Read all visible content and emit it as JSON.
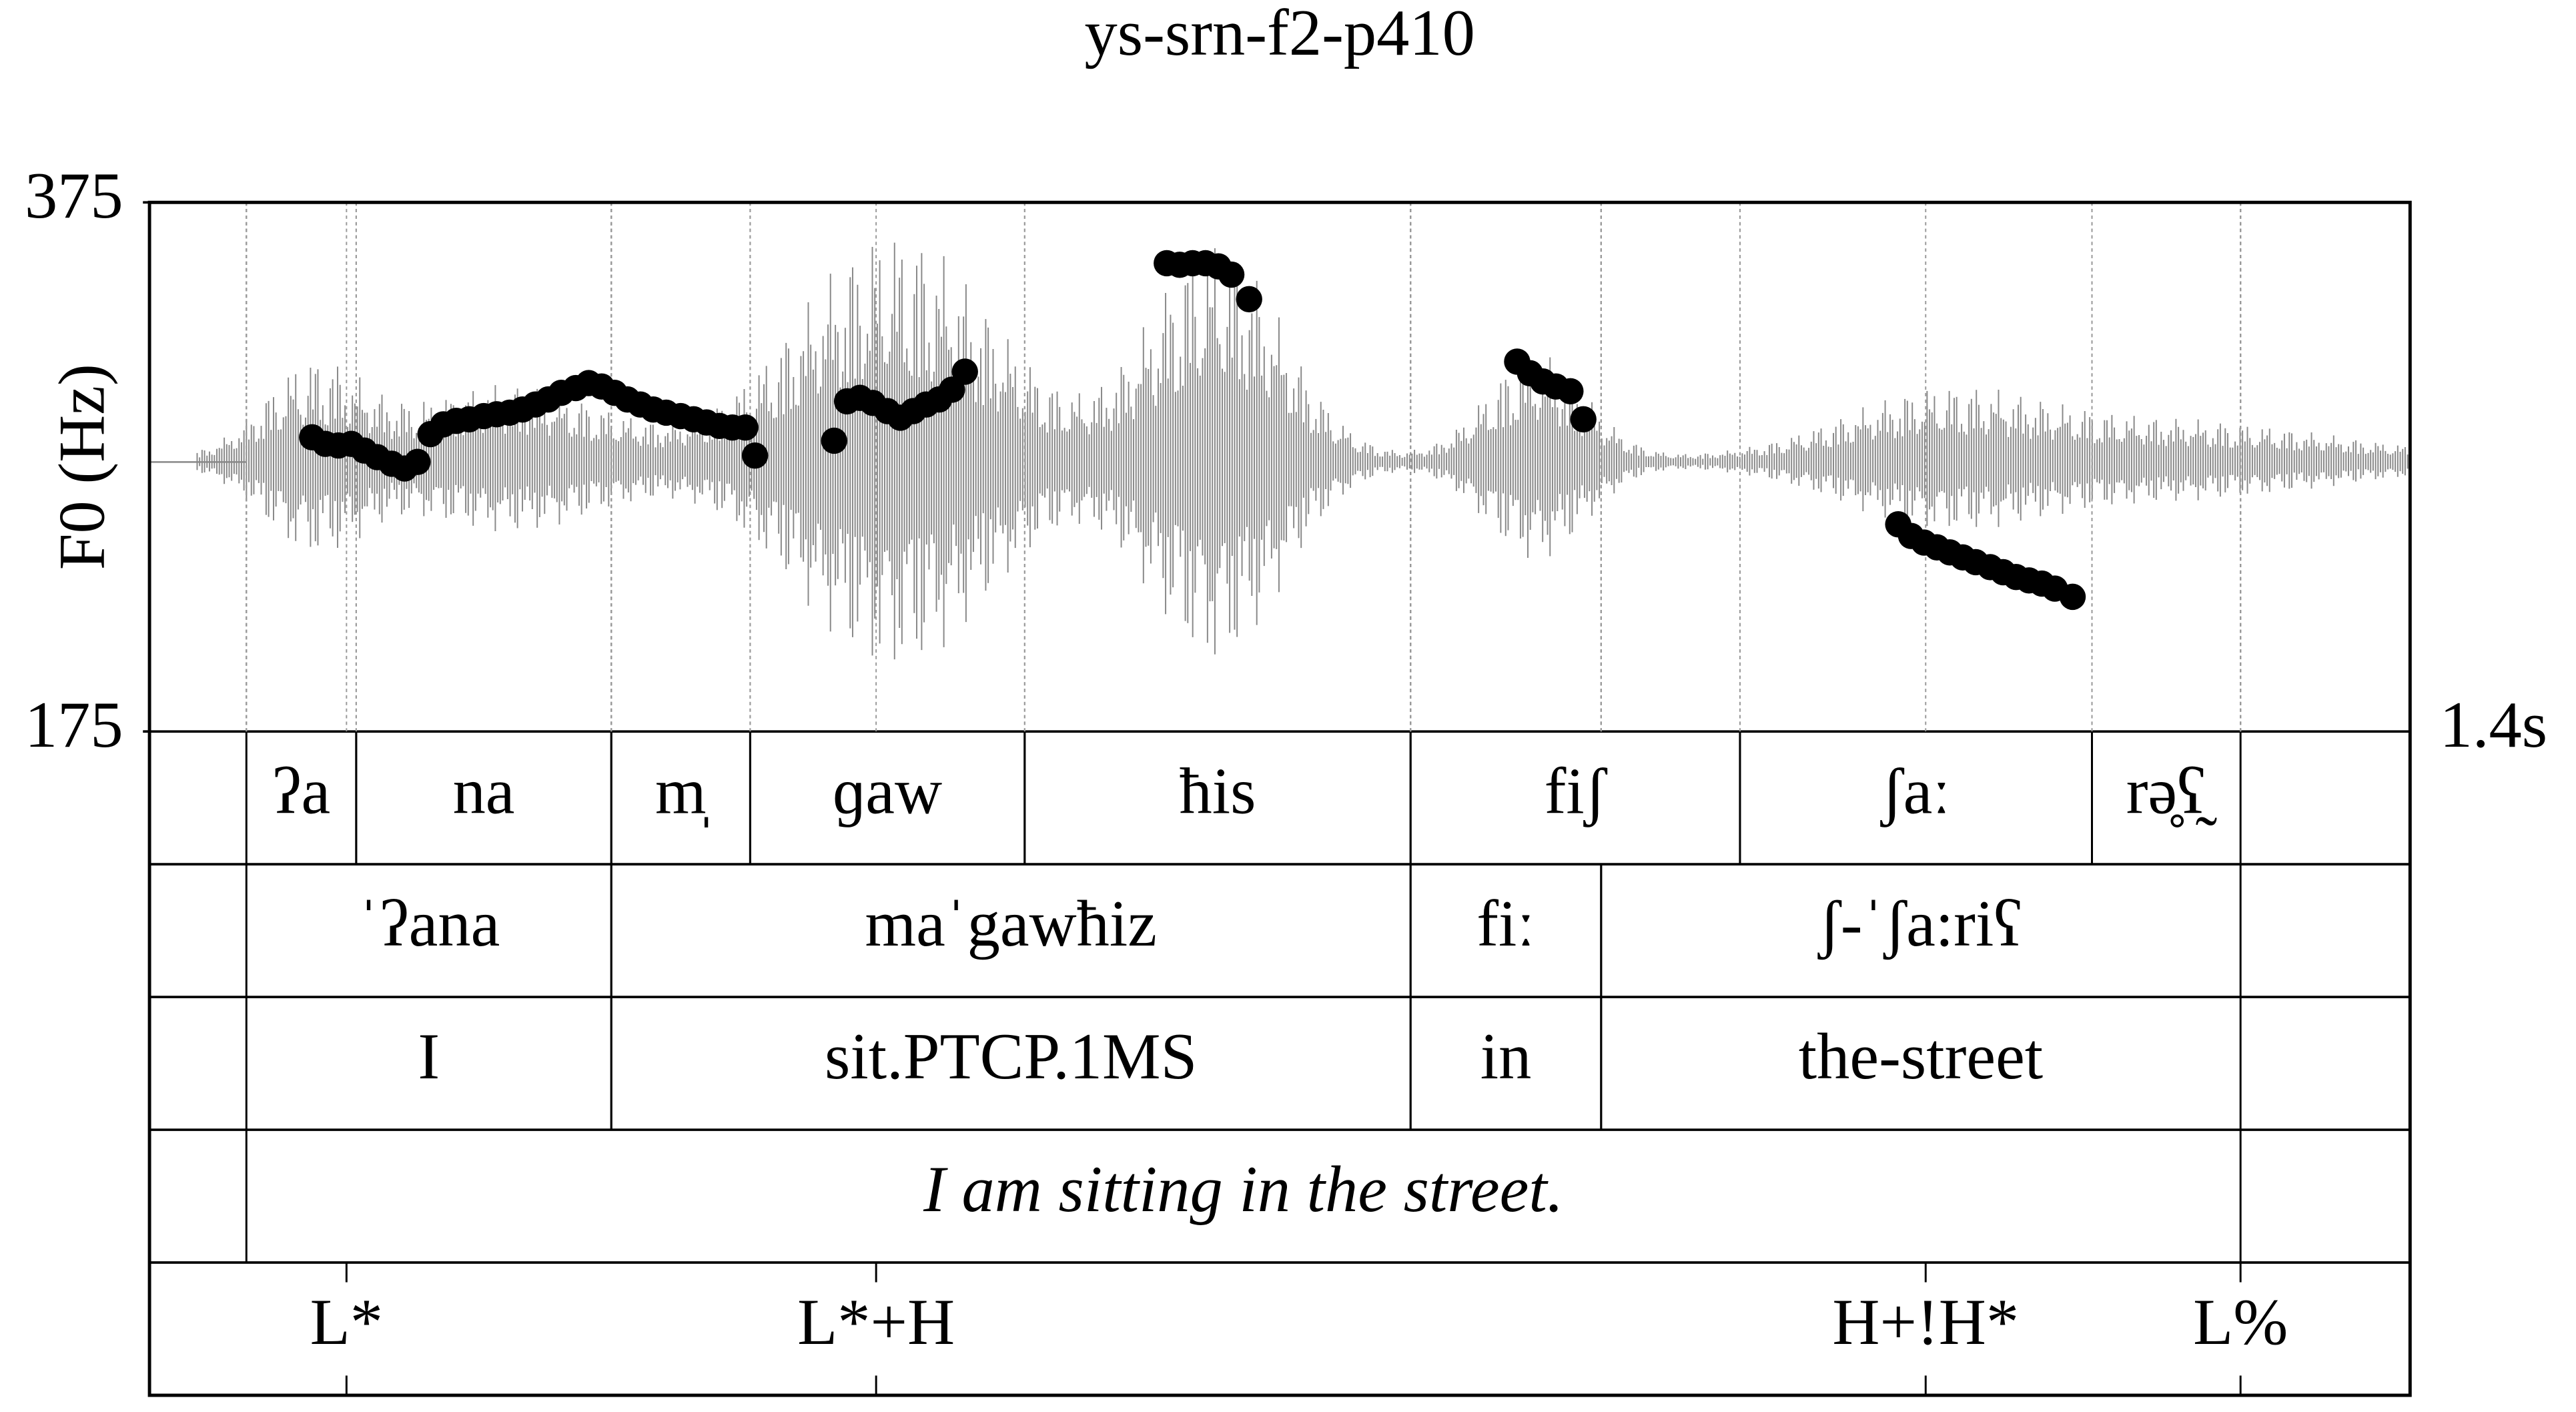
{
  "chart_data": {
    "type": "scatter",
    "title": "ys-srn-f2-p410",
    "y_label": "F0 (Hz)",
    "xlim": [
      0,
      1.4
    ],
    "xticks": [
      {
        "value": 1.4,
        "label": "1.4s"
      }
    ],
    "ylim": [
      175,
      375
    ],
    "yticks": [
      175,
      375
    ],
    "color": "#000000",
    "x": [
      0.1007,
      0.1089,
      0.117,
      0.125,
      0.133,
      0.141,
      0.15,
      0.158,
      0.166,
      0.174,
      0.182,
      0.19,
      0.198,
      0.207,
      0.215,
      0.223,
      0.231,
      0.239,
      0.247,
      0.255,
      0.264,
      0.272,
      0.28,
      0.288,
      0.296,
      0.304,
      0.312,
      0.32,
      0.329,
      0.337,
      0.345,
      0.353,
      0.361,
      0.369,
      0.375,
      0.424,
      0.432,
      0.44,
      0.448,
      0.457,
      0.465,
      0.473,
      0.481,
      0.489,
      0.497,
      0.505,
      0.63,
      0.638,
      0.646,
      0.654,
      0.662,
      0.67,
      0.681,
      0.847,
      0.855,
      0.863,
      0.871,
      0.88,
      0.888,
      1.083,
      1.091,
      1.099,
      1.107,
      1.115,
      1.123,
      1.131,
      1.14,
      1.148,
      1.156,
      1.164,
      1.172,
      1.18,
      1.191
    ],
    "values": [
      286.2,
      283.7,
      283.1,
      283.7,
      281.2,
      278.7,
      276.2,
      274.4,
      276.9,
      287.4,
      291.1,
      292.4,
      293.0,
      294.2,
      294.9,
      295.5,
      296.7,
      298.6,
      300.5,
      303.0,
      304.8,
      306.7,
      305.4,
      303.0,
      300.5,
      298.6,
      296.7,
      295.5,
      294.2,
      293.0,
      291.8,
      290.5,
      289.9,
      289.9,
      279.3,
      284.9,
      299.8,
      301.1,
      299.2,
      296.1,
      293.6,
      296.1,
      298.6,
      300.5,
      304.2,
      311.0,
      352.0,
      351.4,
      352.0,
      352.0,
      350.8,
      347.7,
      338.4,
      314.8,
      310.4,
      307.3,
      305.4,
      303.6,
      293.0,
      253.3,
      248.9,
      246.4,
      244.6,
      242.7,
      240.8,
      239.0,
      237.1,
      235.2,
      233.4,
      232.1,
      230.9,
      229.0,
      225.9
    ],
    "tiers": [
      {
        "intervals": [
          {
            "text": "ʔa",
            "start": 0.06,
            "end": 0.128
          },
          {
            "text": "na",
            "start": 0.128,
            "end": 0.286
          },
          {
            "text": "m̩",
            "start": 0.286,
            "end": 0.372
          },
          {
            "text": "ɡaw",
            "start": 0.372,
            "end": 0.542
          },
          {
            "text": "ħis",
            "start": 0.542,
            "end": 0.781
          },
          {
            "text": "fiʃ",
            "start": 0.781,
            "end": 0.985
          },
          {
            "text": "ʃaː",
            "start": 0.985,
            "end": 1.203
          },
          {
            "text": "rə̥ʕ̰",
            "start": 1.203,
            "end": 1.295
          }
        ]
      },
      {
        "intervals": [
          {
            "text": "ˈʔana",
            "start": 0.06,
            "end": 0.286
          },
          {
            "text": "maˈgawħiz",
            "start": 0.286,
            "end": 0.781
          },
          {
            "text": "fiː",
            "start": 0.781,
            "end": 0.899
          },
          {
            "text": "ʃ-ˈʃa:riʕ",
            "start": 0.899,
            "end": 1.295
          }
        ]
      },
      {
        "intervals": [
          {
            "text": "I",
            "start": 0.06,
            "end": 0.286
          },
          {
            "text": "sit.PTCP.1MS",
            "start": 0.286,
            "end": 0.781
          },
          {
            "text": "in",
            "start": 0.781,
            "end": 0.899
          },
          {
            "text": "the-street",
            "start": 0.899,
            "end": 1.295
          }
        ]
      },
      {
        "style": "italic",
        "intervals": [
          {
            "text": "I am sitting in the street.",
            "start": 0.06,
            "end": 1.295
          }
        ]
      },
      {
        "points": [
          {
            "text": "L*",
            "time": 0.122
          },
          {
            "text": "L*+H",
            "time": 0.45
          },
          {
            "text": "H+!H*",
            "time": 1.1
          },
          {
            "text": "L%",
            "time": 1.295
          }
        ]
      }
    ]
  }
}
